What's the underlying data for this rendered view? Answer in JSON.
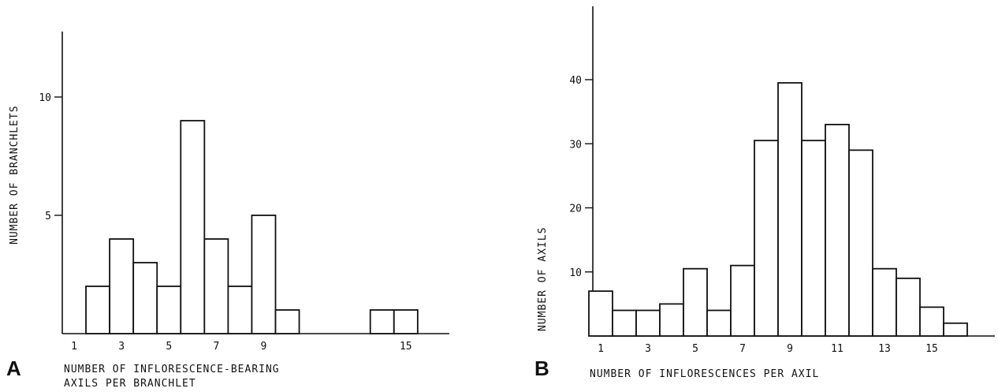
{
  "chart_data": [
    {
      "type": "bar",
      "panel_label": "A",
      "x": [
        2,
        3,
        4,
        5,
        6,
        7,
        8,
        9,
        10,
        14,
        15
      ],
      "values": [
        2,
        4,
        3,
        2,
        9,
        4,
        2,
        5,
        1,
        1,
        1
      ],
      "xticks": [
        1,
        3,
        5,
        7,
        9,
        15
      ],
      "yticks": [
        5,
        10
      ],
      "xlabel_lines": [
        "NUMBER OF INFLORESCENCE-BEARING",
        "AXILS PER BRANCHLET"
      ],
      "ylabel": "NUMBER OF BRANCHLETS",
      "xlim": [
        0.5,
        18.5
      ],
      "ylim": [
        0,
        13
      ],
      "grid": false
    },
    {
      "type": "bar",
      "panel_label": "B",
      "x": [
        1,
        2,
        3,
        4,
        5,
        6,
        7,
        8,
        9,
        10,
        11,
        12,
        13,
        14,
        15,
        16
      ],
      "values": [
        7,
        4,
        4,
        5,
        10.5,
        4,
        11,
        30.5,
        39.5,
        30.5,
        33,
        29,
        10.5,
        9,
        4.5,
        2
      ],
      "xticks": [
        1,
        3,
        5,
        7,
        9,
        11,
        13,
        15
      ],
      "yticks": [
        10,
        20,
        30,
        40
      ],
      "xlabel_lines": [
        "NUMBER OF INFLORESCENCES PER AXIL"
      ],
      "ylabel": "NUMBER OF AXILS",
      "xlim": [
        0.5,
        17.5
      ],
      "ylim": [
        0,
        48
      ],
      "grid": false
    }
  ]
}
